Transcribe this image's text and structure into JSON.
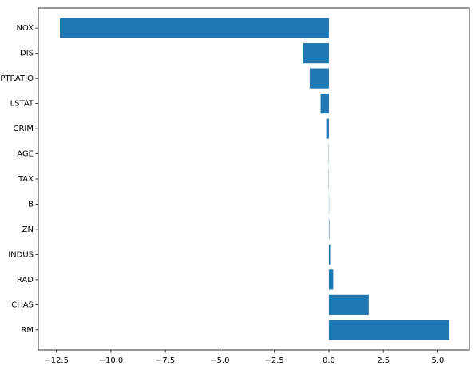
{
  "chart_data": {
    "type": "barh",
    "categories": [
      "NOX",
      "DIS",
      "PTRATIO",
      "LSTAT",
      "CRIM",
      "AGE",
      "TAX",
      "B",
      "ZN",
      "INDUS",
      "RAD",
      "CHAS",
      "RM"
    ],
    "values": [
      -12.34,
      -1.17,
      -0.88,
      -0.38,
      -0.12,
      -0.01,
      -0.01,
      0.01,
      0.02,
      0.06,
      0.2,
      1.83,
      5.53
    ],
    "color": "#1f77b4",
    "xlim": [
      -13.33,
      6.45
    ],
    "xticks": [
      {
        "value": -12.5,
        "label": "−12.5"
      },
      {
        "value": -10,
        "label": "−10.0"
      },
      {
        "value": -7.5,
        "label": "−7.5"
      },
      {
        "value": -5,
        "label": "−5.0"
      },
      {
        "value": -2.5,
        "label": "−2.5"
      },
      {
        "value": 0,
        "label": "0.0"
      },
      2.5,
      {
        "value": 5,
        "label": "5.0"
      }
    ]
  }
}
